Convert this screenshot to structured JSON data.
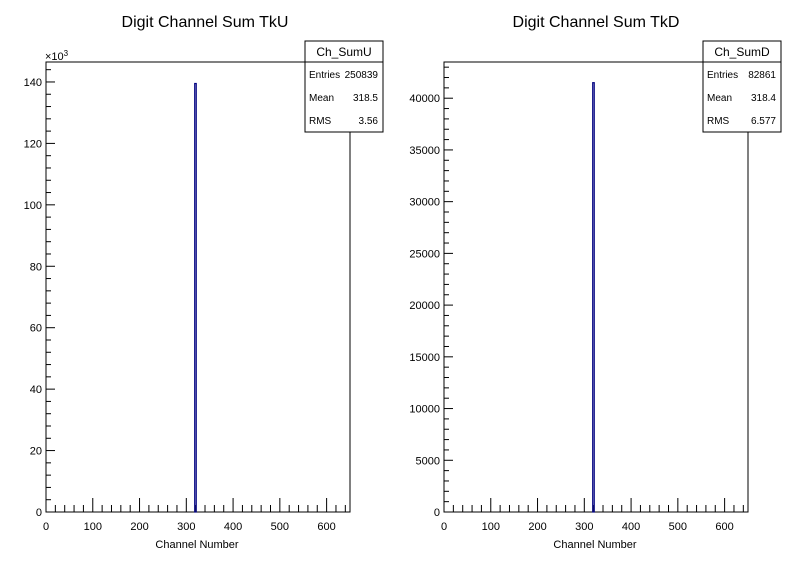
{
  "chart_data": [
    {
      "type": "bar",
      "title": "Digit Channel Sum TkU",
      "xlabel": "Channel Number",
      "ylabel": "",
      "xlim": [
        0,
        650
      ],
      "ylim": [
        0,
        146.5
      ],
      "y_multiplier_label": "×10",
      "y_multiplier_exponent": "3",
      "x_ticks": [
        0,
        100,
        200,
        300,
        400,
        500,
        600
      ],
      "x_tick_labels": [
        "0",
        "100",
        "200",
        "300",
        "400",
        "500",
        "600"
      ],
      "y_ticks": [
        0,
        20,
        40,
        60,
        80,
        100,
        120,
        140
      ],
      "y_tick_labels": [
        "0",
        "20",
        "40",
        "60",
        "80",
        "100",
        "120",
        "140"
      ],
      "bins": [
        {
          "x": 318,
          "value": 139.5
        }
      ],
      "line_color": "#000080",
      "grid": false,
      "legend": "none",
      "stats": {
        "name": "Ch_SumU",
        "position": "top-right",
        "rows": [
          {
            "label": "Entries",
            "value": "250839"
          },
          {
            "label": "Mean",
            "value": "318.5"
          },
          {
            "label": "RMS",
            "value": "3.56"
          }
        ]
      }
    },
    {
      "type": "bar",
      "title": "Digit Channel Sum TkD",
      "xlabel": "Channel Number",
      "ylabel": "",
      "xlim": [
        0,
        650
      ],
      "ylim": [
        0,
        43500
      ],
      "x_ticks": [
        0,
        100,
        200,
        300,
        400,
        500,
        600
      ],
      "x_tick_labels": [
        "0",
        "100",
        "200",
        "300",
        "400",
        "500",
        "600"
      ],
      "y_ticks": [
        0,
        5000,
        10000,
        15000,
        20000,
        25000,
        30000,
        35000,
        40000
      ],
      "y_tick_labels": [
        "0",
        "5000",
        "10000",
        "15000",
        "20000",
        "25000",
        "30000",
        "35000",
        "40000"
      ],
      "bins": [
        {
          "x": 318,
          "value": 41500
        }
      ],
      "line_color": "#000080",
      "grid": false,
      "legend": "none",
      "stats": {
        "name": "Ch_SumD",
        "position": "top-right",
        "rows": [
          {
            "label": "Entries",
            "value": "82861"
          },
          {
            "label": "Mean",
            "value": "318.4"
          },
          {
            "label": "RMS",
            "value": "6.577"
          }
        ]
      }
    }
  ]
}
